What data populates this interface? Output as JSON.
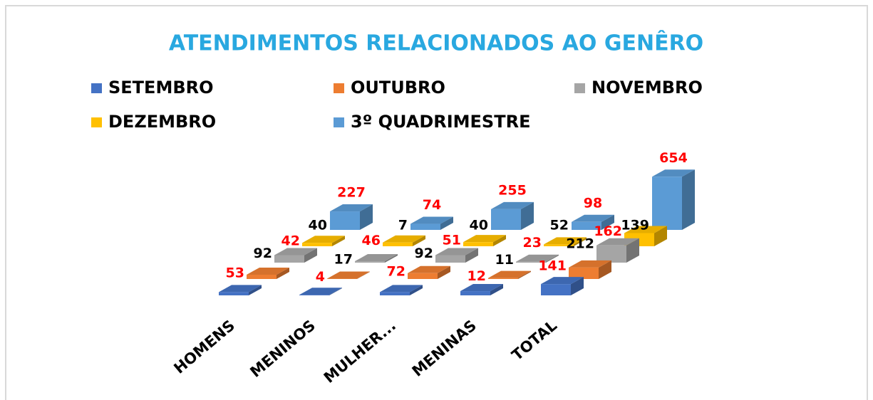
{
  "chart_data": {
    "type": "bar3d",
    "title": "ATENDIMENTOS RELACIONADOS AO GENÊRO",
    "categories": [
      "HOMENS",
      "MENINOS",
      "MULHER...",
      "MENINAS",
      "TOTAL"
    ],
    "series": [
      {
        "name": "SETEMBRO",
        "color": "#4472c4",
        "label_color": "#000000",
        "values": [
          40,
          7,
          40,
          52,
          139
        ]
      },
      {
        "name": "OUTUBRO",
        "color": "#ed7d31",
        "label_color": "#ff0000",
        "values": [
          53,
          4,
          72,
          12,
          141
        ]
      },
      {
        "name": "NOVEMBRO",
        "color": "#a5a5a5",
        "label_color": "#000000",
        "values": [
          92,
          17,
          92,
          11,
          212
        ]
      },
      {
        "name": "DEZEMBRO",
        "color": "#ffc000",
        "label_color": "#ff0000",
        "values": [
          42,
          46,
          51,
          23,
          162
        ]
      },
      {
        "name": "3º QUADRIMESTRE",
        "color": "#5b9bd5",
        "label_color": "#ff0000",
        "values": [
          227,
          74,
          255,
          98,
          654
        ]
      }
    ],
    "ylim": [
      0,
      700
    ]
  }
}
